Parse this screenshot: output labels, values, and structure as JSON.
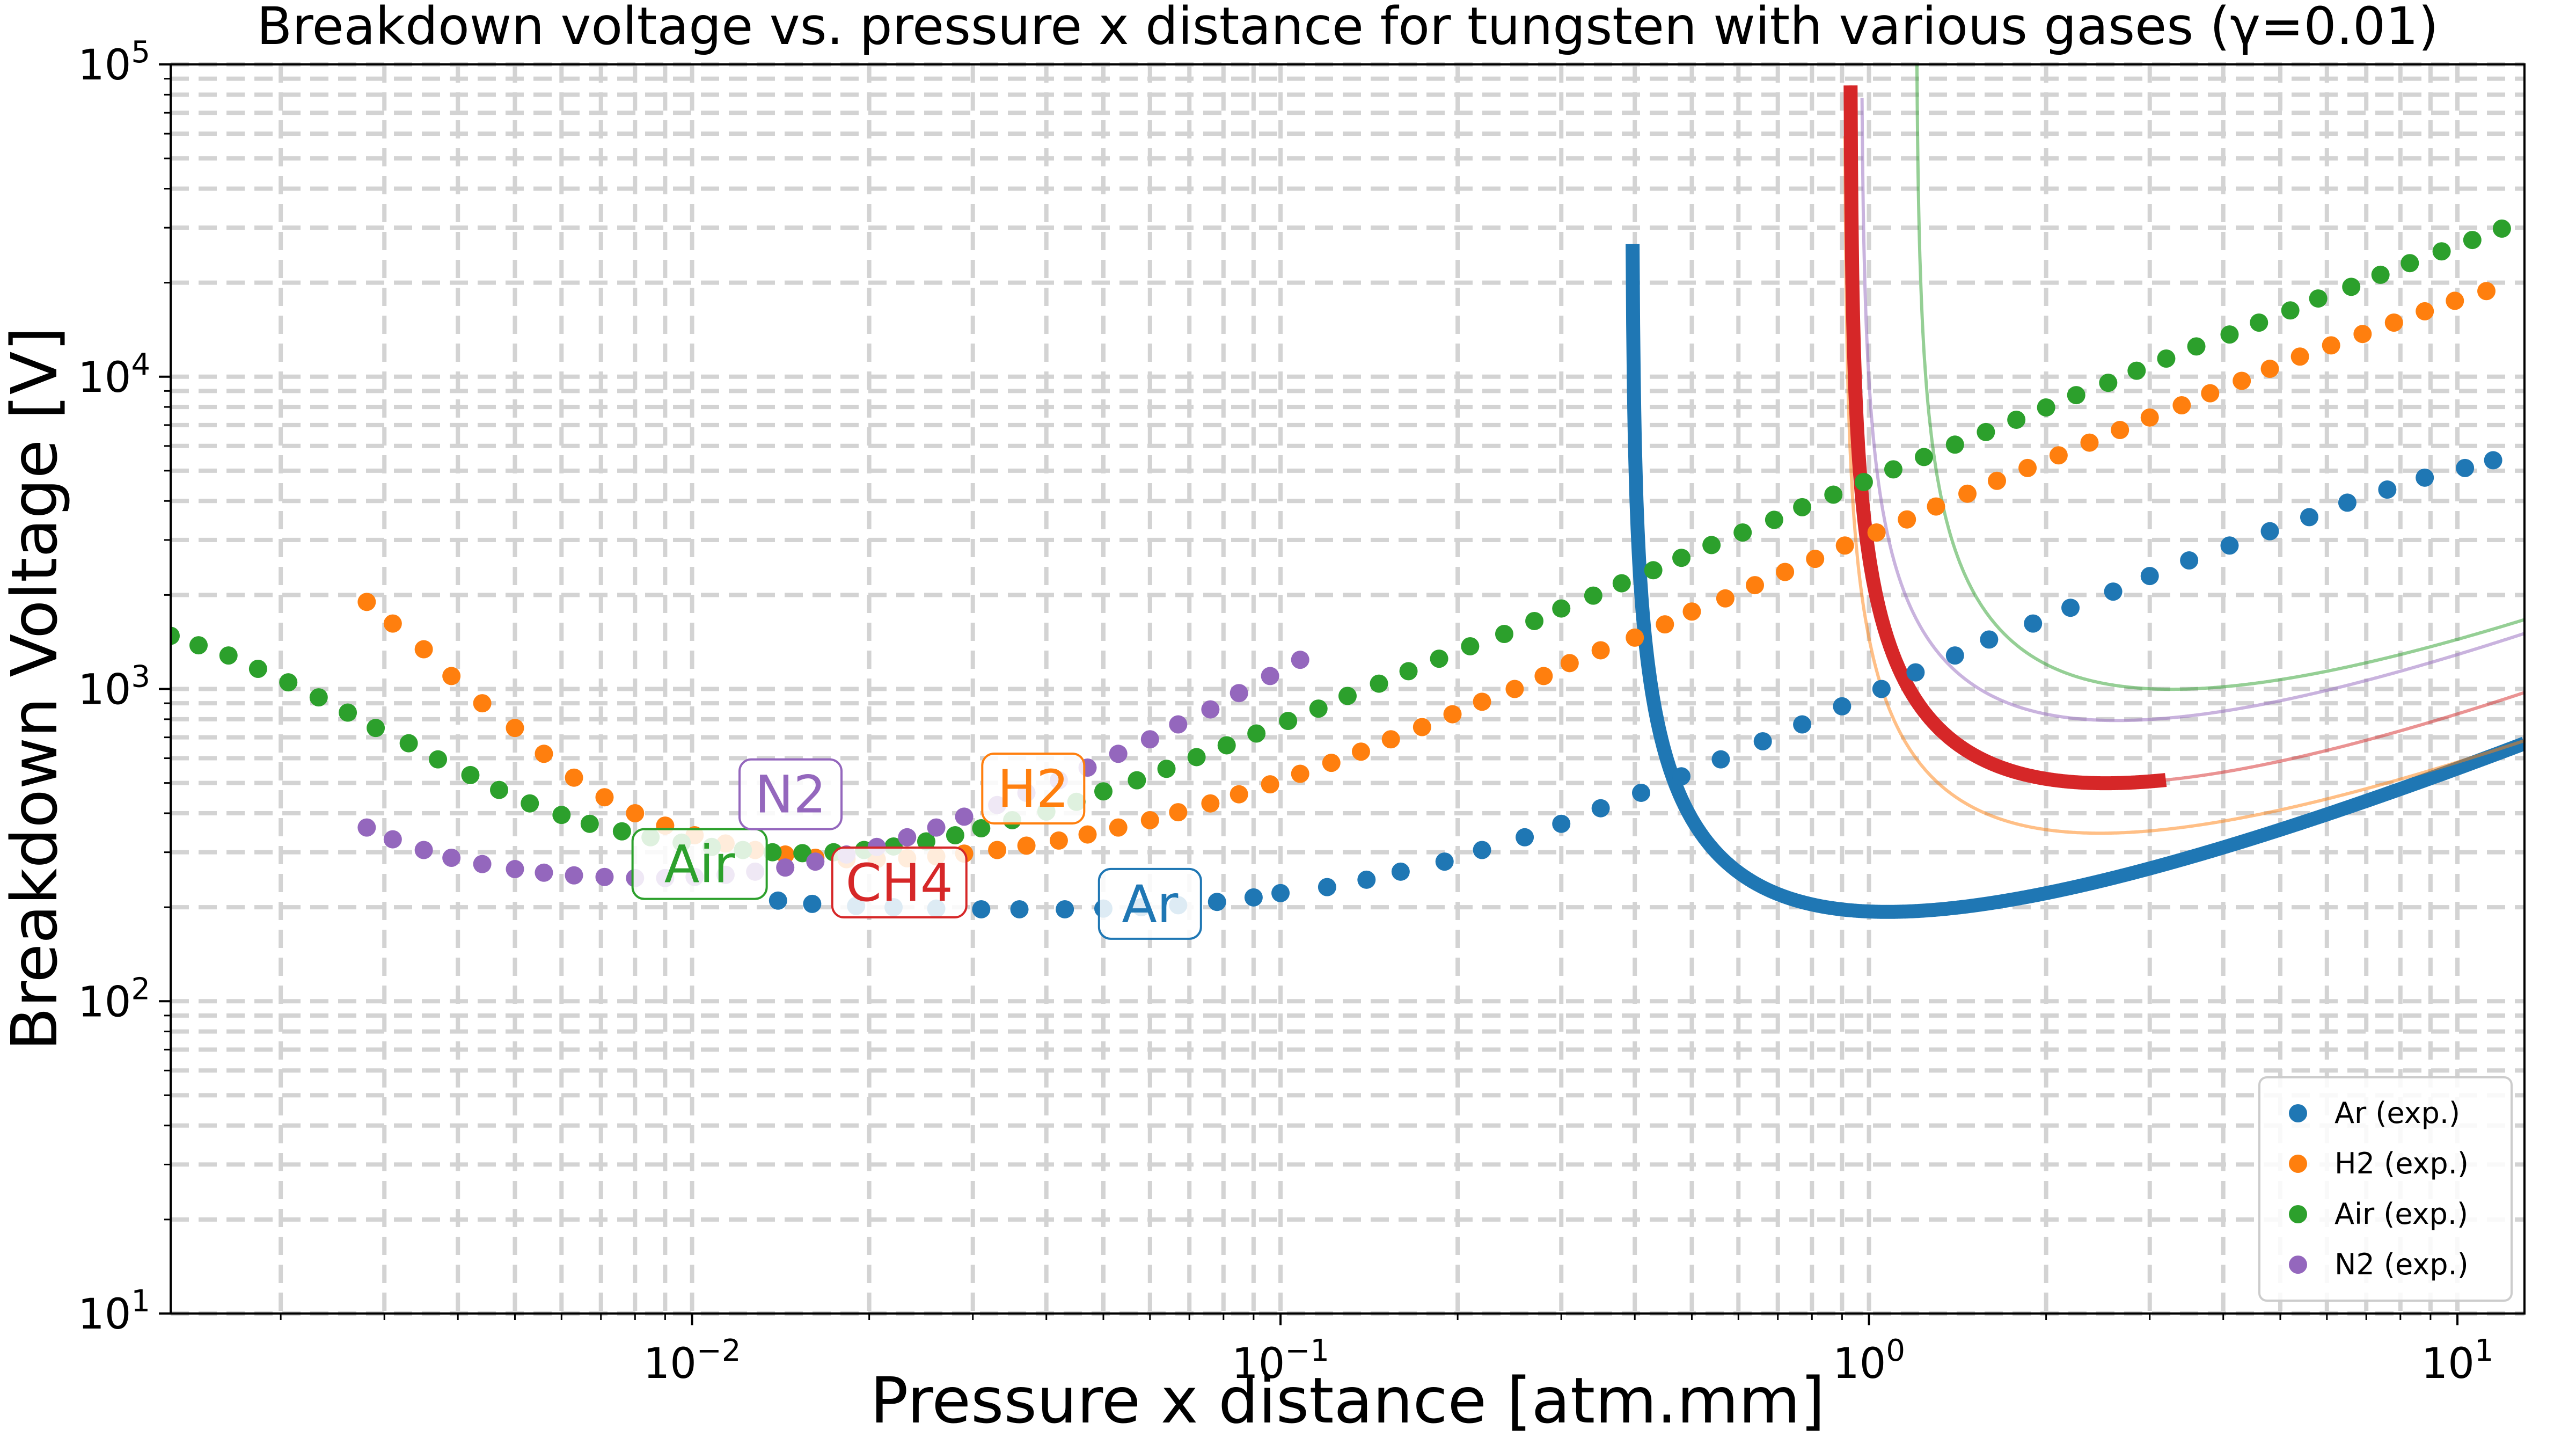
{
  "chart_data": {
    "type": "scatter",
    "title": "Breakdown voltage vs. pressure x distance for tungsten with various gases (γ=0.01)",
    "xlabel": "Pressure x distance [atm.mm]",
    "ylabel": "Breakdown Voltage [V]",
    "xscale": "log",
    "yscale": "log",
    "xlim": [
      0.0013,
      13
    ],
    "ylim": [
      10,
      100000
    ],
    "x_ticks": [
      {
        "value": 0.01,
        "base": "10",
        "exp": "−2"
      },
      {
        "value": 0.1,
        "base": "10",
        "exp": "−1"
      },
      {
        "value": 1,
        "base": "10",
        "exp": "0"
      },
      {
        "value": 10,
        "base": "10",
        "exp": "1"
      }
    ],
    "y_ticks": [
      {
        "value": 10,
        "base": "10",
        "exp": "1"
      },
      {
        "value": 100,
        "base": "10",
        "exp": "2"
      },
      {
        "value": 1000,
        "base": "10",
        "exp": "3"
      },
      {
        "value": 10000,
        "base": "10",
        "exp": "4"
      },
      {
        "value": 100000,
        "base": "10",
        "exp": "5"
      }
    ],
    "grid": true,
    "grid_style": "dashed, major and minor",
    "legend_position": "bottom-right",
    "colors": {
      "Ar": "#1f77b4",
      "H2": "#ff7f0e",
      "Air": "#2ca02c",
      "CH4": "#d62728",
      "N2": "#9467bd",
      "grid": "#d3d3d3"
    },
    "series": [
      {
        "name": "Ar (exp.)",
        "gas": "Ar",
        "kind": "points",
        "x": [
          0.014,
          0.016,
          0.019,
          0.022,
          0.026,
          0.031,
          0.036,
          0.043,
          0.05,
          0.058,
          0.067,
          0.078,
          0.09,
          0.1,
          0.12,
          0.14,
          0.16,
          0.19,
          0.22,
          0.26,
          0.3,
          0.35,
          0.41,
          0.48,
          0.56,
          0.66,
          0.77,
          0.9,
          1.05,
          1.2,
          1.4,
          1.6,
          1.9,
          2.2,
          2.6,
          3.0,
          3.5,
          4.1,
          4.8,
          5.6,
          6.5,
          7.6,
          8.8,
          10.3,
          11.5
        ],
        "y": [
          210,
          205,
          202,
          200,
          198,
          197,
          197,
          197,
          198,
          200,
          203,
          208,
          215,
          222,
          232,
          245,
          260,
          280,
          305,
          335,
          370,
          415,
          465,
          525,
          595,
          680,
          770,
          880,
          1000,
          1130,
          1280,
          1440,
          1620,
          1820,
          2050,
          2300,
          2580,
          2880,
          3200,
          3550,
          3950,
          4350,
          4750,
          5100,
          5400
        ]
      },
      {
        "name": "H2 (exp.)",
        "gas": "H2",
        "kind": "points",
        "x": [
          0.0028,
          0.0031,
          0.0035,
          0.0039,
          0.0044,
          0.005,
          0.0056,
          0.0063,
          0.0071,
          0.008,
          0.009,
          0.0101,
          0.0114,
          0.0128,
          0.0144,
          0.0162,
          0.0183,
          0.0206,
          0.0232,
          0.026,
          0.029,
          0.033,
          0.037,
          0.042,
          0.047,
          0.053,
          0.06,
          0.067,
          0.076,
          0.085,
          0.096,
          0.108,
          0.122,
          0.137,
          0.154,
          0.174,
          0.196,
          0.22,
          0.25,
          0.28,
          0.31,
          0.35,
          0.4,
          0.45,
          0.5,
          0.57,
          0.64,
          0.72,
          0.81,
          0.91,
          1.03,
          1.16,
          1.3,
          1.47,
          1.65,
          1.86,
          2.1,
          2.37,
          2.67,
          3.0,
          3.4,
          3.8,
          4.3,
          4.8,
          5.4,
          6.1,
          6.9,
          7.8,
          8.8,
          9.9,
          11.2
        ],
        "y": [
          1900,
          1620,
          1340,
          1100,
          900,
          750,
          620,
          520,
          450,
          400,
          365,
          340,
          320,
          305,
          295,
          288,
          285,
          285,
          287,
          291,
          297,
          305,
          315,
          327,
          342,
          360,
          380,
          403,
          430,
          460,
          495,
          535,
          580,
          630,
          690,
          755,
          830,
          910,
          1000,
          1100,
          1210,
          1330,
          1460,
          1610,
          1770,
          1950,
          2150,
          2370,
          2610,
          2880,
          3170,
          3490,
          3840,
          4220,
          4640,
          5100,
          5600,
          6150,
          6750,
          7400,
          8100,
          8850,
          9700,
          10600,
          11600,
          12600,
          13700,
          14900,
          16200,
          17500,
          18800
        ]
      },
      {
        "name": "Air (exp.)",
        "gas": "Air",
        "kind": "points",
        "x": [
          0.0013,
          0.00145,
          0.00163,
          0.00183,
          0.00206,
          0.00232,
          0.0026,
          0.0029,
          0.0033,
          0.0037,
          0.0042,
          0.0047,
          0.0053,
          0.006,
          0.0067,
          0.0076,
          0.0085,
          0.0096,
          0.0108,
          0.0122,
          0.0137,
          0.0154,
          0.0174,
          0.0196,
          0.022,
          0.025,
          0.028,
          0.031,
          0.035,
          0.04,
          0.045,
          0.05,
          0.057,
          0.064,
          0.072,
          0.081,
          0.091,
          0.103,
          0.116,
          0.13,
          0.147,
          0.165,
          0.186,
          0.21,
          0.24,
          0.27,
          0.3,
          0.34,
          0.38,
          0.43,
          0.48,
          0.54,
          0.61,
          0.69,
          0.77,
          0.87,
          0.98,
          1.1,
          1.24,
          1.4,
          1.58,
          1.78,
          2.0,
          2.25,
          2.55,
          2.85,
          3.2,
          3.6,
          4.1,
          4.6,
          5.2,
          5.8,
          6.6,
          7.4,
          8.3,
          9.4,
          10.6,
          11.9
        ],
        "y": [
          1480,
          1380,
          1280,
          1160,
          1050,
          940,
          840,
          750,
          670,
          595,
          530,
          475,
          430,
          395,
          370,
          350,
          335,
          322,
          312,
          305,
          300,
          298,
          300,
          305,
          313,
          325,
          340,
          358,
          380,
          405,
          435,
          470,
          510,
          555,
          605,
          660,
          720,
          790,
          865,
          950,
          1040,
          1140,
          1250,
          1370,
          1500,
          1650,
          1810,
          1990,
          2180,
          2400,
          2630,
          2890,
          3170,
          3480,
          3820,
          4190,
          4600,
          5050,
          5530,
          6060,
          6650,
          7280,
          7970,
          8730,
          9560,
          10450,
          11430,
          12500,
          13650,
          14900,
          16300,
          17800,
          19400,
          21200,
          23100,
          25200,
          27400,
          29800
        ]
      },
      {
        "name": "N2 (exp.)",
        "gas": "N2",
        "kind": "points",
        "x": [
          0.0028,
          0.0031,
          0.0035,
          0.0039,
          0.0044,
          0.005,
          0.0056,
          0.0063,
          0.0071,
          0.008,
          0.009,
          0.0101,
          0.0114,
          0.0128,
          0.0144,
          0.0162,
          0.0183,
          0.0206,
          0.0232,
          0.026,
          0.029,
          0.033,
          0.037,
          0.042,
          0.047,
          0.053,
          0.06,
          0.067,
          0.076,
          0.085,
          0.096,
          0.108
        ],
        "y": [
          360,
          330,
          305,
          288,
          275,
          265,
          258,
          253,
          250,
          248,
          248,
          250,
          254,
          260,
          268,
          280,
          295,
          312,
          335,
          360,
          390,
          425,
          465,
          510,
          560,
          620,
          690,
          770,
          860,
          970,
          1100,
          1240
        ]
      }
    ],
    "curves": [
      {
        "gas": "Ar",
        "kind": "Paschen fit",
        "A": 11.67,
        "B": 179.8
      },
      {
        "gas": "H2",
        "kind": "Paschen fit",
        "A": 5.08,
        "B": 139.8
      },
      {
        "gas": "Air",
        "kind": "Paschen fit",
        "A": 3.84,
        "B": 305.4
      },
      {
        "gas": "CH4",
        "kind": "Paschen fit",
        "A": 4.97,
        "B": 197.7
      },
      {
        "gas": "N2",
        "kind": "Paschen fit",
        "A": 4.76,
        "B": 300.7
      }
    ],
    "annotations": [
      {
        "text": "Ar",
        "gas": "Ar",
        "x": 0.06,
        "y": 205
      },
      {
        "text": "H2",
        "gas": "H2",
        "x": 0.038,
        "y": 480
      },
      {
        "text": "Air",
        "gas": "Air",
        "x": 0.0103,
        "y": 275
      },
      {
        "text": "CH4",
        "gas": "CH4",
        "x": 0.0225,
        "y": 240
      },
      {
        "text": "N2",
        "gas": "N2",
        "x": 0.0147,
        "y": 460
      }
    ],
    "legend": [
      {
        "label": "Ar (exp.)",
        "gas": "Ar"
      },
      {
        "label": "H2 (exp.)",
        "gas": "H2"
      },
      {
        "label": "Air (exp.)",
        "gas": "Air"
      },
      {
        "label": "N2 (exp.)",
        "gas": "N2"
      }
    ]
  }
}
